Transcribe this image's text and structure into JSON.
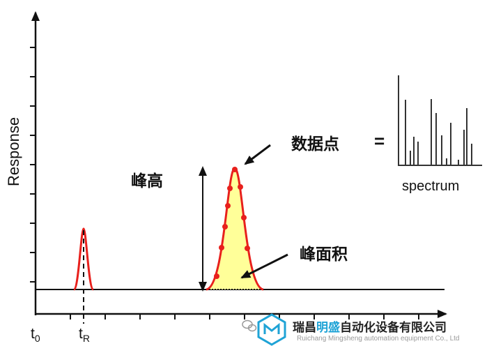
{
  "axis": {
    "ylabel": "Response",
    "t0_base": "t",
    "t0_sub": "0",
    "tR_base": "t",
    "tR_sub": "R"
  },
  "annotations": {
    "peak_height": "峰高",
    "data_points": "数据点",
    "equals": "=",
    "spectrum": "spectrum",
    "peak_area": "峰面积"
  },
  "colors": {
    "peak_line": "#e8201c",
    "peak_fill": "#ffff99",
    "axis": "#1a1a1a"
  },
  "watermark": {
    "cn_pre": "瑞昌",
    "cn_accent": "明盛",
    "cn_post": "自动化设备有限公司",
    "en": "Ruichang Mingsheng automation equipment Co., Ltd",
    "icon": "wechat-icon",
    "logo": "hexagon-logo"
  }
}
